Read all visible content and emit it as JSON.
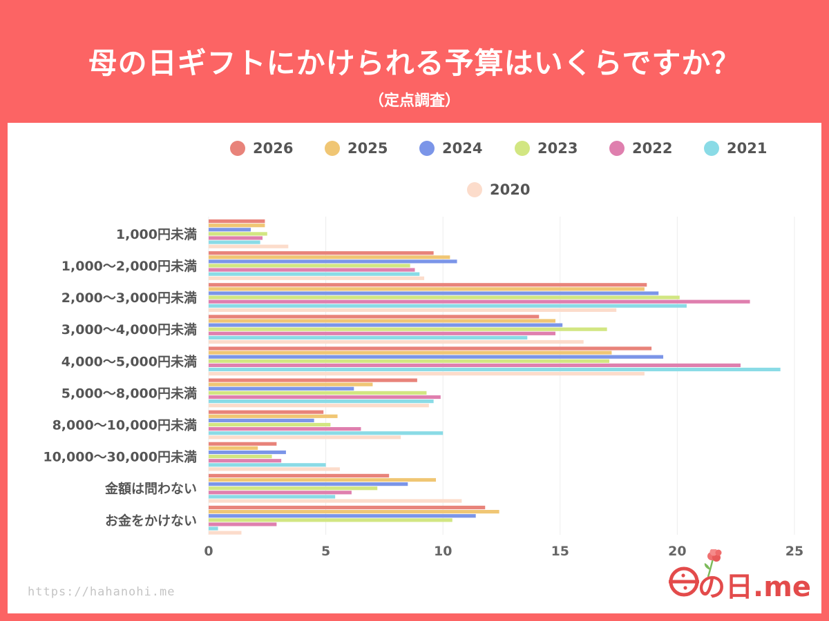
{
  "header": {
    "title": "母の日ギフトにかけられる予算はいくらですか？",
    "subtitle": "（定点調査）"
  },
  "footer": {
    "url": "https://hahanohi.me",
    "logo_text": "の日.me"
  },
  "chart_data": {
    "type": "bar",
    "orientation": "horizontal",
    "categories": [
      "1,000円未満",
      "1,000～2,000円未満",
      "2,000～3,000円未満",
      "3,000～4,000円未満",
      "4,000～5,000円未満",
      "5,000～8,000円未満",
      "8,000～10,000円未満",
      "10,000～30,000円未満",
      "金額は問わない",
      "お金をかけない"
    ],
    "series": [
      {
        "name": "2026",
        "color": "#e8837a",
        "values": [
          2.4,
          9.6,
          18.7,
          14.1,
          18.9,
          8.9,
          4.9,
          2.9,
          7.7,
          11.8
        ]
      },
      {
        "name": "2025",
        "color": "#f0c674",
        "values": [
          2.4,
          10.3,
          18.6,
          14.8,
          17.2,
          7.0,
          5.5,
          2.1,
          9.7,
          12.4
        ]
      },
      {
        "name": "2024",
        "color": "#7b95e8",
        "values": [
          1.8,
          10.6,
          19.2,
          15.1,
          19.4,
          6.2,
          4.5,
          3.3,
          8.5,
          11.4
        ]
      },
      {
        "name": "2023",
        "color": "#d2e682",
        "values": [
          2.5,
          8.6,
          20.1,
          17.0,
          17.1,
          9.3,
          5.2,
          2.7,
          7.2,
          10.4
        ]
      },
      {
        "name": "2022",
        "color": "#df7fae",
        "values": [
          2.3,
          8.8,
          23.1,
          14.8,
          22.7,
          9.9,
          6.5,
          3.1,
          6.1,
          2.9
        ]
      },
      {
        "name": "2021",
        "color": "#8adbe6",
        "values": [
          2.2,
          9.0,
          20.4,
          13.6,
          24.4,
          9.6,
          10.0,
          5.0,
          5.4,
          0.4
        ]
      },
      {
        "name": "2020",
        "color": "#fcdccb",
        "values": [
          3.4,
          9.2,
          17.4,
          16.0,
          18.6,
          9.4,
          8.2,
          5.6,
          10.8,
          1.4
        ]
      }
    ],
    "xlim": [
      0,
      25
    ],
    "xticks": [
      0,
      5,
      10,
      15,
      20,
      25
    ],
    "grid": true,
    "legend": "top"
  }
}
